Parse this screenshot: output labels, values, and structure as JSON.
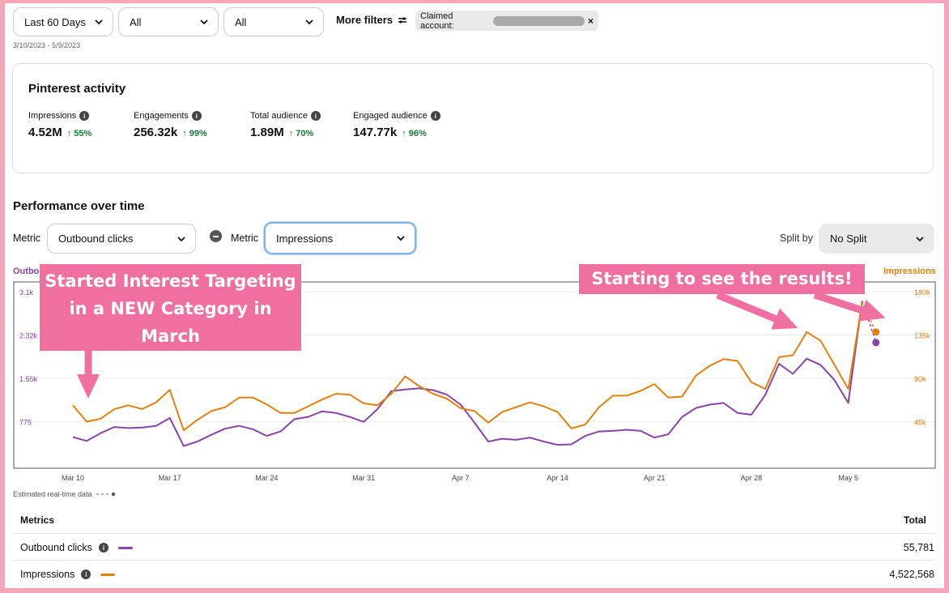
{
  "filters": {
    "date_range": "Last 60 Days",
    "filter_2": "All",
    "filter_3": "All",
    "more_filters": "More filters",
    "chip_label": "Claimed account:",
    "chip_close": "×",
    "date_span": "3/10/2023 - 5/9/2023"
  },
  "activity": {
    "title": "Pinterest activity",
    "stats": [
      {
        "label": "Impressions",
        "value": "4.52M",
        "change": "55%"
      },
      {
        "label": "Engagements",
        "value": "256.32k",
        "change": "99%"
      },
      {
        "label": "Total audience",
        "value": "1.89M",
        "change": "70%"
      },
      {
        "label": "Engaged audience",
        "value": "147.77k",
        "change": "96%"
      }
    ]
  },
  "performance": {
    "title": "Performance over time",
    "metric_label": "Metric",
    "metric_1": "Outbound clicks",
    "metric_2_label": "Metric",
    "metric_2": "Impressions",
    "split_label": "Split by",
    "split_value": "No Split",
    "left_axis_title": "Outbo",
    "right_axis_title": "Impressions"
  },
  "callouts": {
    "first_line1": "Started Interest Targeting",
    "first_line2": "in a NEW Category in",
    "first_line3": "March",
    "second": "Starting to see the results!"
  },
  "estimated_label": "Estimated real-time data",
  "colors": {
    "outbound": "#8a44a8",
    "impressions": "#e0820f",
    "callout": "#ee6fa0",
    "positive": "#1a7a3a"
  },
  "chart_data": {
    "type": "line",
    "x_ticks": [
      "Mar 10",
      "Mar 17",
      "Mar 24",
      "Mar 31",
      "Apr 7",
      "Apr 14",
      "Apr 21",
      "Apr 28",
      "May 5"
    ],
    "left_ticks": [
      "775",
      "1.55k",
      "2.32k",
      "3.1k"
    ],
    "right_ticks": [
      "45k",
      "90k",
      "135k",
      "180k"
    ],
    "left_ylim": [
      0,
      3100
    ],
    "right_ylim": [
      0,
      180000
    ],
    "series": [
      {
        "name": "Outbound clicks",
        "axis": "left",
        "values": [
          500,
          430,
          570,
          680,
          660,
          670,
          700,
          840,
          340,
          420,
          540,
          650,
          700,
          640,
          520,
          600,
          820,
          860,
          960,
          930,
          860,
          770,
          1000,
          1320,
          1350,
          1370,
          1340,
          1260,
          1080,
          760,
          420,
          470,
          450,
          490,
          420,
          360,
          370,
          520,
          600,
          610,
          630,
          610,
          490,
          550,
          860,
          1020,
          1080,
          1110,
          930,
          900,
          1250,
          1810,
          1630,
          1900,
          1790,
          1520,
          1110,
          2930,
          2190
        ]
      },
      {
        "name": "Impressions",
        "axis": "right",
        "values": [
          62000,
          45000,
          48000,
          58000,
          62000,
          58000,
          65000,
          78000,
          36000,
          47000,
          56000,
          60000,
          70000,
          70000,
          63000,
          54000,
          54000,
          61000,
          68000,
          74000,
          73000,
          64000,
          62000,
          74000,
          92000,
          82000,
          74000,
          69000,
          59000,
          56000,
          44000,
          55000,
          60000,
          65000,
          61000,
          55000,
          38000,
          42000,
          60000,
          72000,
          72000,
          77000,
          84000,
          70000,
          71000,
          93000,
          103000,
          110000,
          108000,
          86000,
          79000,
          112000,
          114000,
          138000,
          129000,
          104000,
          79000,
          169000,
          138000
        ]
      }
    ]
  },
  "table": {
    "metrics_header": "Metrics",
    "total_header": "Total",
    "rows": [
      {
        "name": "Outbound clicks",
        "total": "55,781"
      },
      {
        "name": "Impressions",
        "total": "4,522,568"
      }
    ]
  }
}
